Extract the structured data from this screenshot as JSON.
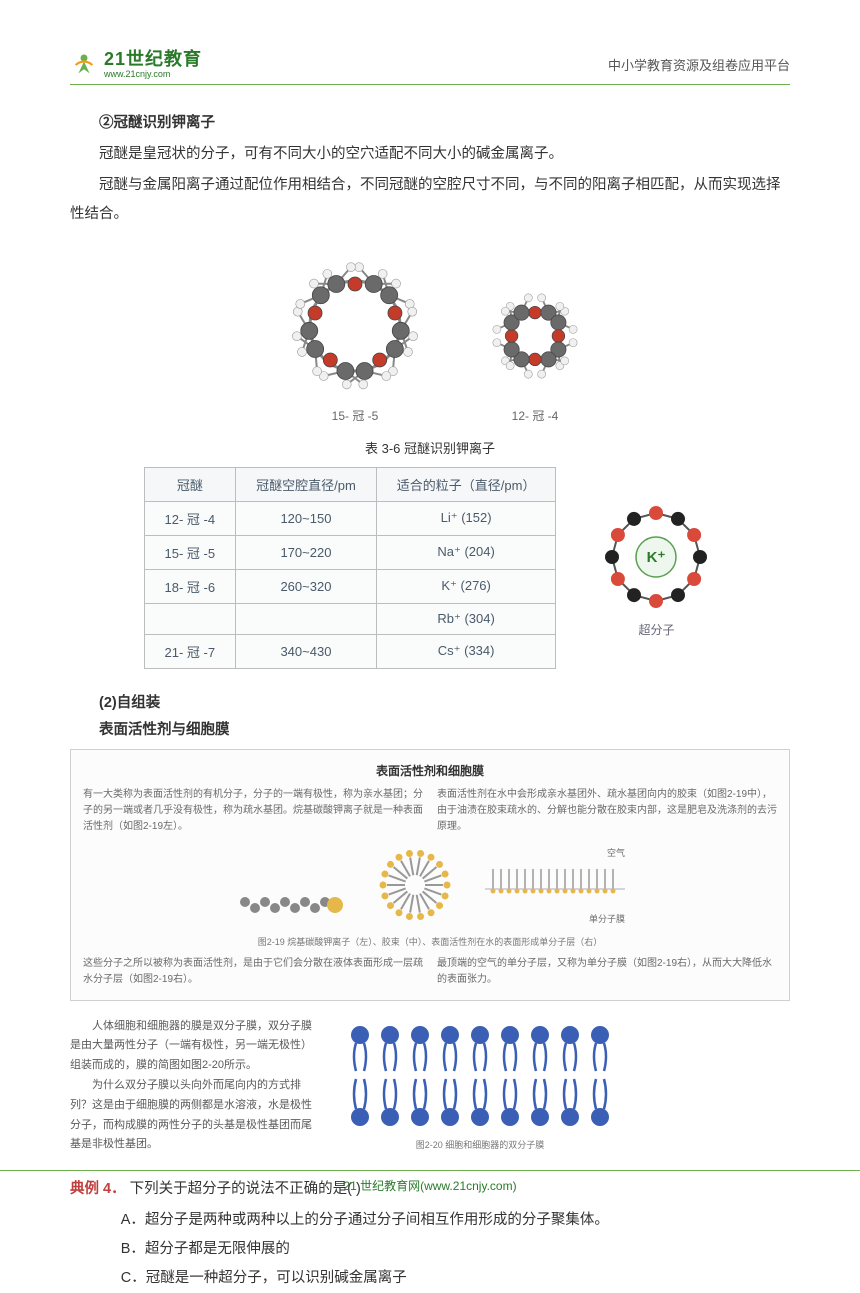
{
  "header": {
    "logo_cn": "21世纪教育",
    "logo_en": "www.21cnjy.com",
    "right": "中小学教育资源及组卷应用平台"
  },
  "section1": {
    "title": "②冠醚识别钾离子",
    "p1": "冠醚是皇冠状的分子，可有不同大小的空穴适配不同大小的碱金属离子。",
    "p2": "冠醚与金属阳离子通过配位作用相结合，不同冠醚的空腔尺寸不同，与不同的阳离子相匹配，从而实现选择性结合。"
  },
  "molecules": {
    "cap1": "15- 冠 -5",
    "cap2": "12- 冠 -4",
    "colors": {
      "carbon": "#6a6a6a",
      "oxygen": "#c53b2a",
      "hydrogen": "#f0f0f0",
      "bond": "#888"
    }
  },
  "table": {
    "title": "表 3-6  冠醚识别钾离子",
    "headers": [
      "冠醚",
      "冠醚空腔直径/pm",
      "适合的粒子（直径/pm）"
    ],
    "rows": [
      [
        "12- 冠 -4",
        "120~150",
        "Li⁺ (152)"
      ],
      [
        "15- 冠 -5",
        "170~220",
        "Na⁺ (204)"
      ],
      [
        "18- 冠 -6",
        "260~320",
        "K⁺ (276)"
      ],
      [
        "",
        "",
        "Rb⁺ (304)"
      ],
      [
        "21- 冠 -7",
        "340~430",
        "Cs⁺ (334)"
      ]
    ],
    "supermol_caption": "超分子",
    "supermol_center": "K⁺",
    "supermol_colors": {
      "black": "#222222",
      "red": "#d94a3a",
      "line": "#555555",
      "center_fill": "#eef7ee",
      "center_stroke": "#5aa050",
      "center_text": "#2a7a2a"
    }
  },
  "section2": {
    "h1": "(2)自组装",
    "h2": "表面活性剂与细胞膜"
  },
  "card1": {
    "title": "表面活性剂和细胞膜",
    "left": "有一大类称为表面活性剂的有机分子，分子的一端有极性，称为亲水基团；分子的另一端或者几乎没有极性，称为疏水基团。烷基碳酸钾离子就是一种表面活性剂（如图2-19左）。",
    "right": "表面活性剂在水中会形成亲水基团外、疏水基团向内的胶束（如图2-19中），由于油渍在胶束疏水的、分解也能分散在胶束内部，这是肥皂及洗涤剂的去污原理。",
    "mid_caption": "图2-19  烷基碳酸钾离子（左）、胶束（中）、表面活性剂在水的表面形成单分子层（右）",
    "bl": "这些分子之所以被称为表面活性剂，是由于它们会分散在液体表面形成一层疏水分子层（如图2-19右）。",
    "br": "最顶端的空气的单分子层，又称为单分子膜（如图2-19右），从而大大降低水的表面张力。",
    "label_air": "空气",
    "label_mono": "单分子膜"
  },
  "card2": {
    "p1": "人体细胞和细胞器的膜是双分子膜，双分子膜是由大量两性分子（一端有极性，另一端无极性）组装而成的，膜的简图如图2-20所示。",
    "p2": "为什么双分子膜以头向外而尾向内的方式排列？这是由于细胞膜的两侧都是水溶液，水是极性分子，而构成膜的两性分子的头基是极性基团而尾基是非极性基团。",
    "caption": "图2-20  细胞和细胞器的双分子膜",
    "lipid_color": "#3a5fb5"
  },
  "example": {
    "label": "典例 4．",
    "stem": "下列关于超分子的说法不正确的是(        )",
    "A": "A．超分子是两种或两种以上的分子通过分子间相互作用形成的分子聚集体。",
    "B": "B．超分子都是无限伸展的",
    "C": "C．冠醚是一种超分子，可以识别碱金属离子"
  },
  "footer": {
    "text": "21 世纪教育网(www.21cnjy.com)"
  }
}
